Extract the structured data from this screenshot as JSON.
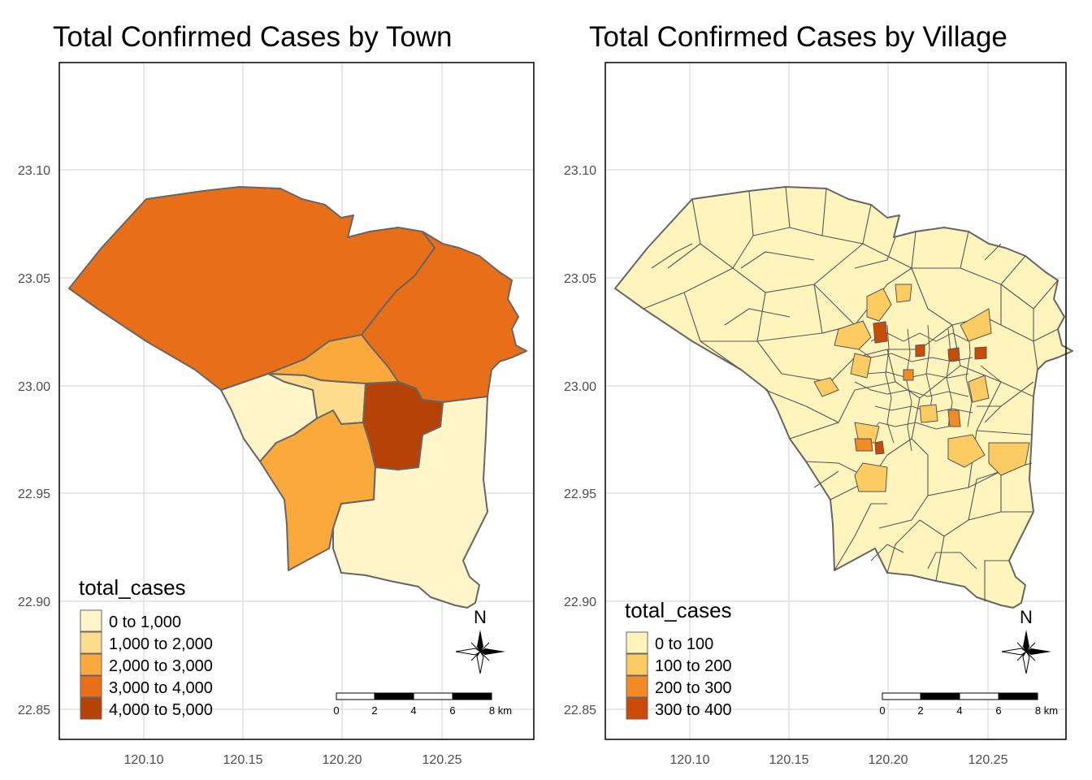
{
  "colors": {
    "border": "#666666",
    "grid": "#d9d9d9",
    "frame": "#000000",
    "town_fills": [
      "#fff5c8",
      "#fedc8e",
      "#fba93b",
      "#e86f17",
      "#b64205"
    ],
    "village_fills": [
      "#fff5bc",
      "#fccb62",
      "#f48a24",
      "#c94b06"
    ]
  },
  "axes": {
    "y_ticks": [
      "23.10",
      "23.05",
      "23.00",
      "22.95",
      "22.90",
      "22.85"
    ],
    "x_ticks": [
      "120.10",
      "120.15",
      "120.20",
      "120.25"
    ]
  },
  "town_map": {
    "title": "Total Confirmed Cases by Town",
    "legend_title": "total_cases",
    "legend_items": [
      "0 to 1,000",
      "1,000 to 2,000",
      "2,000 to 3,000",
      "3,000 to 4,000",
      "4,000 to 5,000"
    ],
    "north_label": "N",
    "scale_labels": [
      "0",
      "2",
      "4",
      "6",
      "8 km"
    ]
  },
  "village_map": {
    "title": "Total Confirmed Cases by Village",
    "legend_title": "total_cases",
    "legend_items": [
      "0 to 100",
      "100 to 200",
      "200 to 300",
      "300 to 400"
    ],
    "north_label": "N",
    "scale_labels": [
      "0",
      "2",
      "4",
      "6",
      "8 km"
    ]
  }
}
